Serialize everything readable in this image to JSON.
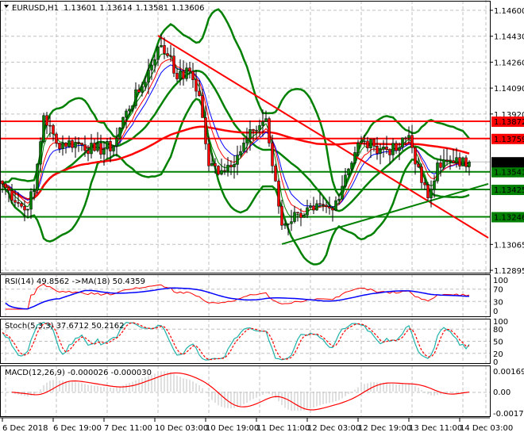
{
  "header": {
    "symbol": "EURUSD,H1",
    "open": "1.13601",
    "high": "1.13614",
    "low": "1.13581",
    "close": "1.13606"
  },
  "chart_data": {
    "type": "candlestick",
    "title": "EURUSD,H1 1.13601 1.13614 1.13581 1.13606",
    "price_axis": {
      "ylim": [
        1.12895,
        1.146
      ],
      "ticks": [
        "1.14600",
        "1.14430",
        "1.14260",
        "1.14090",
        "1.13920",
        "1.13065",
        "1.12895"
      ]
    },
    "time_axis": {
      "ticks": [
        {
          "label": "6 Dec 2018",
          "bar": 0
        },
        {
          "label": "6 Dec 19:00",
          "bar": 16
        },
        {
          "label": "7 Dec 11:00",
          "bar": 32
        },
        {
          "label": "10 Dec 03:00",
          "bar": 48
        },
        {
          "label": "10 Dec 19:00",
          "bar": 64
        },
        {
          "label": "11 Dec 11:00",
          "bar": 80
        },
        {
          "label": "12 Dec 03:00",
          "bar": 96
        },
        {
          "label": "12 Dec 19:00",
          "bar": 112
        },
        {
          "label": "13 Dec 11:00",
          "bar": 128
        },
        {
          "label": "14 Dec 03:00",
          "bar": 144
        }
      ]
    },
    "price_path": [
      [
        0,
        1.13462
      ],
      [
        7,
        1.1329
      ],
      [
        10,
        1.1342
      ],
      [
        13,
        1.1391
      ],
      [
        17,
        1.1373
      ],
      [
        24,
        1.1373
      ],
      [
        29,
        1.1368
      ],
      [
        35,
        1.1371
      ],
      [
        39,
        1.1394
      ],
      [
        44,
        1.141
      ],
      [
        49,
        1.1436
      ],
      [
        53,
        1.143
      ],
      [
        55,
        1.1415
      ],
      [
        59,
        1.142
      ],
      [
        62,
        1.1404
      ],
      [
        65,
        1.1358
      ],
      [
        69,
        1.1355
      ],
      [
        74,
        1.1365
      ],
      [
        79,
        1.1381
      ],
      [
        83,
        1.1389
      ],
      [
        85,
        1.1358
      ],
      [
        88,
        1.1319
      ],
      [
        93,
        1.1327
      ],
      [
        98,
        1.1329
      ],
      [
        104,
        1.1329
      ],
      [
        108,
        1.1352
      ],
      [
        112,
        1.1373
      ],
      [
        117,
        1.1371
      ],
      [
        124,
        1.1368
      ],
      [
        128,
        1.1378
      ],
      [
        132,
        1.1347
      ],
      [
        134,
        1.1337
      ],
      [
        137,
        1.136
      ],
      [
        142,
        1.136
      ],
      [
        147,
        1.13606
      ]
    ],
    "levels": [
      {
        "price": 1.13872,
        "label": "1.13872",
        "color": "#ff0000"
      },
      {
        "price": 1.13759,
        "label": "1.13759",
        "color": "#ff0000"
      },
      {
        "price": 1.13541,
        "label": "1.13541",
        "color": "#008000"
      },
      {
        "price": 1.13425,
        "label": "1.13425",
        "color": "#008000"
      },
      {
        "price": 1.13246,
        "label": "1.13246",
        "color": "#008000"
      }
    ],
    "current_price": {
      "price": 1.13606,
      "label": "1.13606",
      "color": "#000000"
    },
    "trendlines": [
      {
        "from": [
          49,
          1.14434
        ],
        "to": [
          153,
          1.13108
        ],
        "color": "#ff0000"
      },
      {
        "from": [
          88,
          1.13067
        ],
        "to": [
          153,
          1.13462
        ],
        "color": "#008000"
      }
    ],
    "colors": {
      "bull": "#008000",
      "bear": "#ff0000",
      "bands": "#008000",
      "slow_ma": "#ff0000",
      "fast_ma_1": "#0000ff",
      "fast_ma_2": "#ff0000",
      "fast_ma_3": "#008000"
    },
    "rsi": {
      "label": "RSI(14) 49.8562  ->MA(18) 50.4359",
      "ylim": [
        0,
        100
      ],
      "ticks": [
        "100",
        "70",
        "30",
        "0"
      ],
      "colors": {
        "rsi": "#ff0000",
        "ma": "#0000ff"
      }
    },
    "stoch": {
      "label": "Stoch(5,3,3) 37.6712 50.2162",
      "ylim": [
        0,
        100
      ],
      "ticks": [
        "100",
        "80",
        "50",
        "20",
        "0"
      ],
      "colors": {
        "main": "#20b2aa",
        "signal": "#ff0000"
      }
    },
    "macd": {
      "label": "MACD(12,26,9) -0.000026 -0.000030",
      "ylim": [
        -0.001765,
        0.001694
      ],
      "ticks": [
        "0.001694",
        "0.00",
        "-0.001765"
      ],
      "colors": {
        "hist": "#c0c0c0",
        "signal": "#ff0000"
      }
    }
  }
}
